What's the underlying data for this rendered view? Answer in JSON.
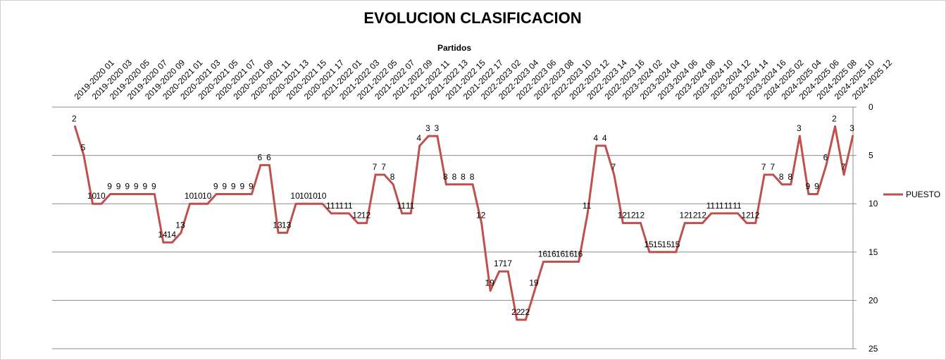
{
  "chart_data": {
    "type": "line",
    "title": "EVOLUCION CLASIFICACION",
    "xlabel": "Partidos",
    "ylabel": "",
    "ylim": [
      0,
      25
    ],
    "y_inverted": true,
    "y_ticks": [
      "0",
      "5",
      "10",
      "15",
      "20",
      "25"
    ],
    "y_axis_position": "right",
    "x_axis_position": "top",
    "grid": true,
    "legend_position": "right",
    "line_color": "#c0504d",
    "x_tick_labels": [
      "2019-2020 01",
      "2019-2020 03",
      "2019-2020 05",
      "2019-2020 07",
      "2019-2020 09",
      "2020-2021 01",
      "2020-2021 03",
      "2020-2021 05",
      "2020-2021 07",
      "2020-2021 09",
      "2020-2021 11",
      "2020-2021 13",
      "2020-2021 15",
      "2020-2021 17",
      "2021-2022 01",
      "2021-2022 03",
      "2021-2022 05",
      "2021-2022 07",
      "2021-2022 09",
      "2021-2022 11",
      "2021-2022 13",
      "2021-2022 15",
      "2021-2022 17",
      "2022-2023 02",
      "2022-2023 04",
      "2022-2023 06",
      "2022-2023 08",
      "2022-2023 10",
      "2022-2023 12",
      "2022-2023 14",
      "2022-2023 16",
      "2023-2024 02",
      "2023-2024 04",
      "2023-2024 06",
      "2023-2024 08",
      "2023-2024 10",
      "2023-2024 12",
      "2023-2024 14",
      "2023-2024 16",
      "2024-2025 02",
      "2024-2025 04",
      "2024-2025 06",
      "2024-2025 08",
      "2024-2025 10",
      "2024-2025 12"
    ],
    "series": [
      {
        "name": "PUESTO",
        "values": [
          2,
          5,
          10,
          10,
          9,
          9,
          9,
          9,
          9,
          9,
          14,
          14,
          13,
          10,
          10,
          10,
          9,
          9,
          9,
          9,
          9,
          6,
          6,
          13,
          13,
          10,
          10,
          10,
          10,
          11,
          11,
          11,
          12,
          12,
          7,
          7,
          8,
          11,
          11,
          4,
          3,
          3,
          8,
          8,
          8,
          8,
          12,
          19,
          17,
          17,
          22,
          22,
          19,
          16,
          16,
          16,
          16,
          16,
          11,
          4,
          4,
          7,
          12,
          12,
          12,
          15,
          15,
          15,
          15,
          12,
          12,
          12,
          11,
          11,
          11,
          11,
          12,
          12,
          7,
          7,
          8,
          8,
          3,
          9,
          9,
          6,
          2,
          7,
          3
        ]
      }
    ]
  }
}
